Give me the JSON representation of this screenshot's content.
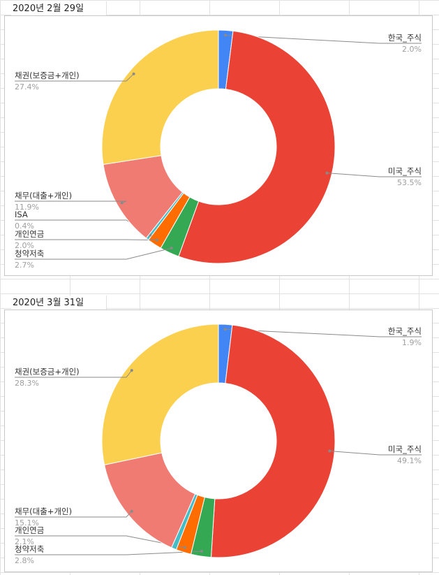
{
  "charts": [
    {
      "date_label": "2020년 2월 29일",
      "chart_data": {
        "type": "pie",
        "donut": true,
        "slices": [
          {
            "label": "한국_주식",
            "pct": "2.0%",
            "value": 2.0,
            "color": "#4285f4"
          },
          {
            "label": "미국_주식",
            "pct": "53.5%",
            "value": 53.5,
            "color": "#ea4335"
          },
          {
            "label": "청약저축",
            "pct": "2.7%",
            "value": 2.7,
            "color": "#34a853"
          },
          {
            "label": "개인연금",
            "pct": "2.0%",
            "value": 2.0,
            "color": "#ff6d01"
          },
          {
            "label": "ISA",
            "pct": "0.4%",
            "value": 0.4,
            "color": "#46bdc6"
          },
          {
            "label": "채무(대출+개인)",
            "pct": "11.9%",
            "value": 11.9,
            "color": "#f07b72"
          },
          {
            "label": "채권(보증금+개인)",
            "pct": "27.4%",
            "value": 27.4,
            "color": "#fcd04f"
          }
        ]
      }
    },
    {
      "date_label": "2020년 3월 31일",
      "chart_data": {
        "type": "pie",
        "donut": true,
        "slices": [
          {
            "label": "한국_주식",
            "pct": "1.9%",
            "value": 1.9,
            "color": "#4285f4"
          },
          {
            "label": "미국_주식",
            "pct": "49.1%",
            "value": 49.1,
            "color": "#ea4335"
          },
          {
            "label": "청약저축",
            "pct": "2.8%",
            "value": 2.8,
            "color": "#34a853"
          },
          {
            "label": "개인연금",
            "pct": "2.1%",
            "value": 2.1,
            "color": "#ff6d01"
          },
          {
            "label": "",
            "pct": "",
            "value": 0.7,
            "color": "#46bdc6"
          },
          {
            "label": "채무(대출+개인)",
            "pct": "15.1%",
            "value": 15.1,
            "color": "#f07b72"
          },
          {
            "label": "채권(보증금+개인)",
            "pct": "28.3%",
            "value": 28.3,
            "color": "#fcd04f"
          }
        ]
      }
    }
  ]
}
